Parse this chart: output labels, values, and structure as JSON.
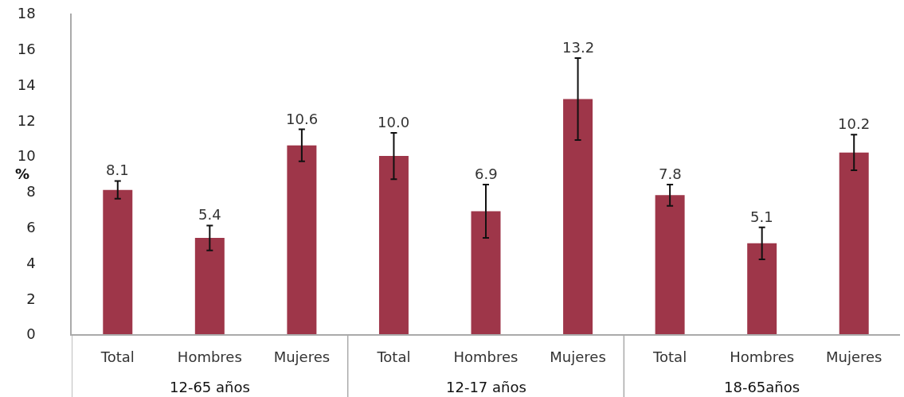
{
  "chart_data": {
    "type": "bar",
    "ylabel": "%",
    "categories": [
      "Total",
      "Hombres",
      "Mujeres",
      "Total",
      "Hombres",
      "Mujeres",
      "Total",
      "Hombres",
      "Mujeres"
    ],
    "series": [
      {
        "color": "#9e3649",
        "values": [
          8.1,
          5.4,
          10.6,
          10.0,
          6.9,
          13.2,
          7.8,
          5.1,
          10.2
        ],
        "errors": [
          0.5,
          0.7,
          0.9,
          1.3,
          1.5,
          2.3,
          0.6,
          0.9,
          1.0
        ],
        "value_labels": [
          "8.1",
          "5.4",
          "10.6",
          "10.0",
          "6.9",
          "13.2",
          "7.8",
          "5.1",
          "10.2"
        ]
      }
    ],
    "annotations": [
      "12-65 años",
      "12-17 años",
      "18-65años"
    ],
    "ylim": [
      0,
      18
    ],
    "yticks": [
      0,
      2,
      4,
      6,
      8,
      10,
      12,
      14,
      16,
      18
    ]
  }
}
